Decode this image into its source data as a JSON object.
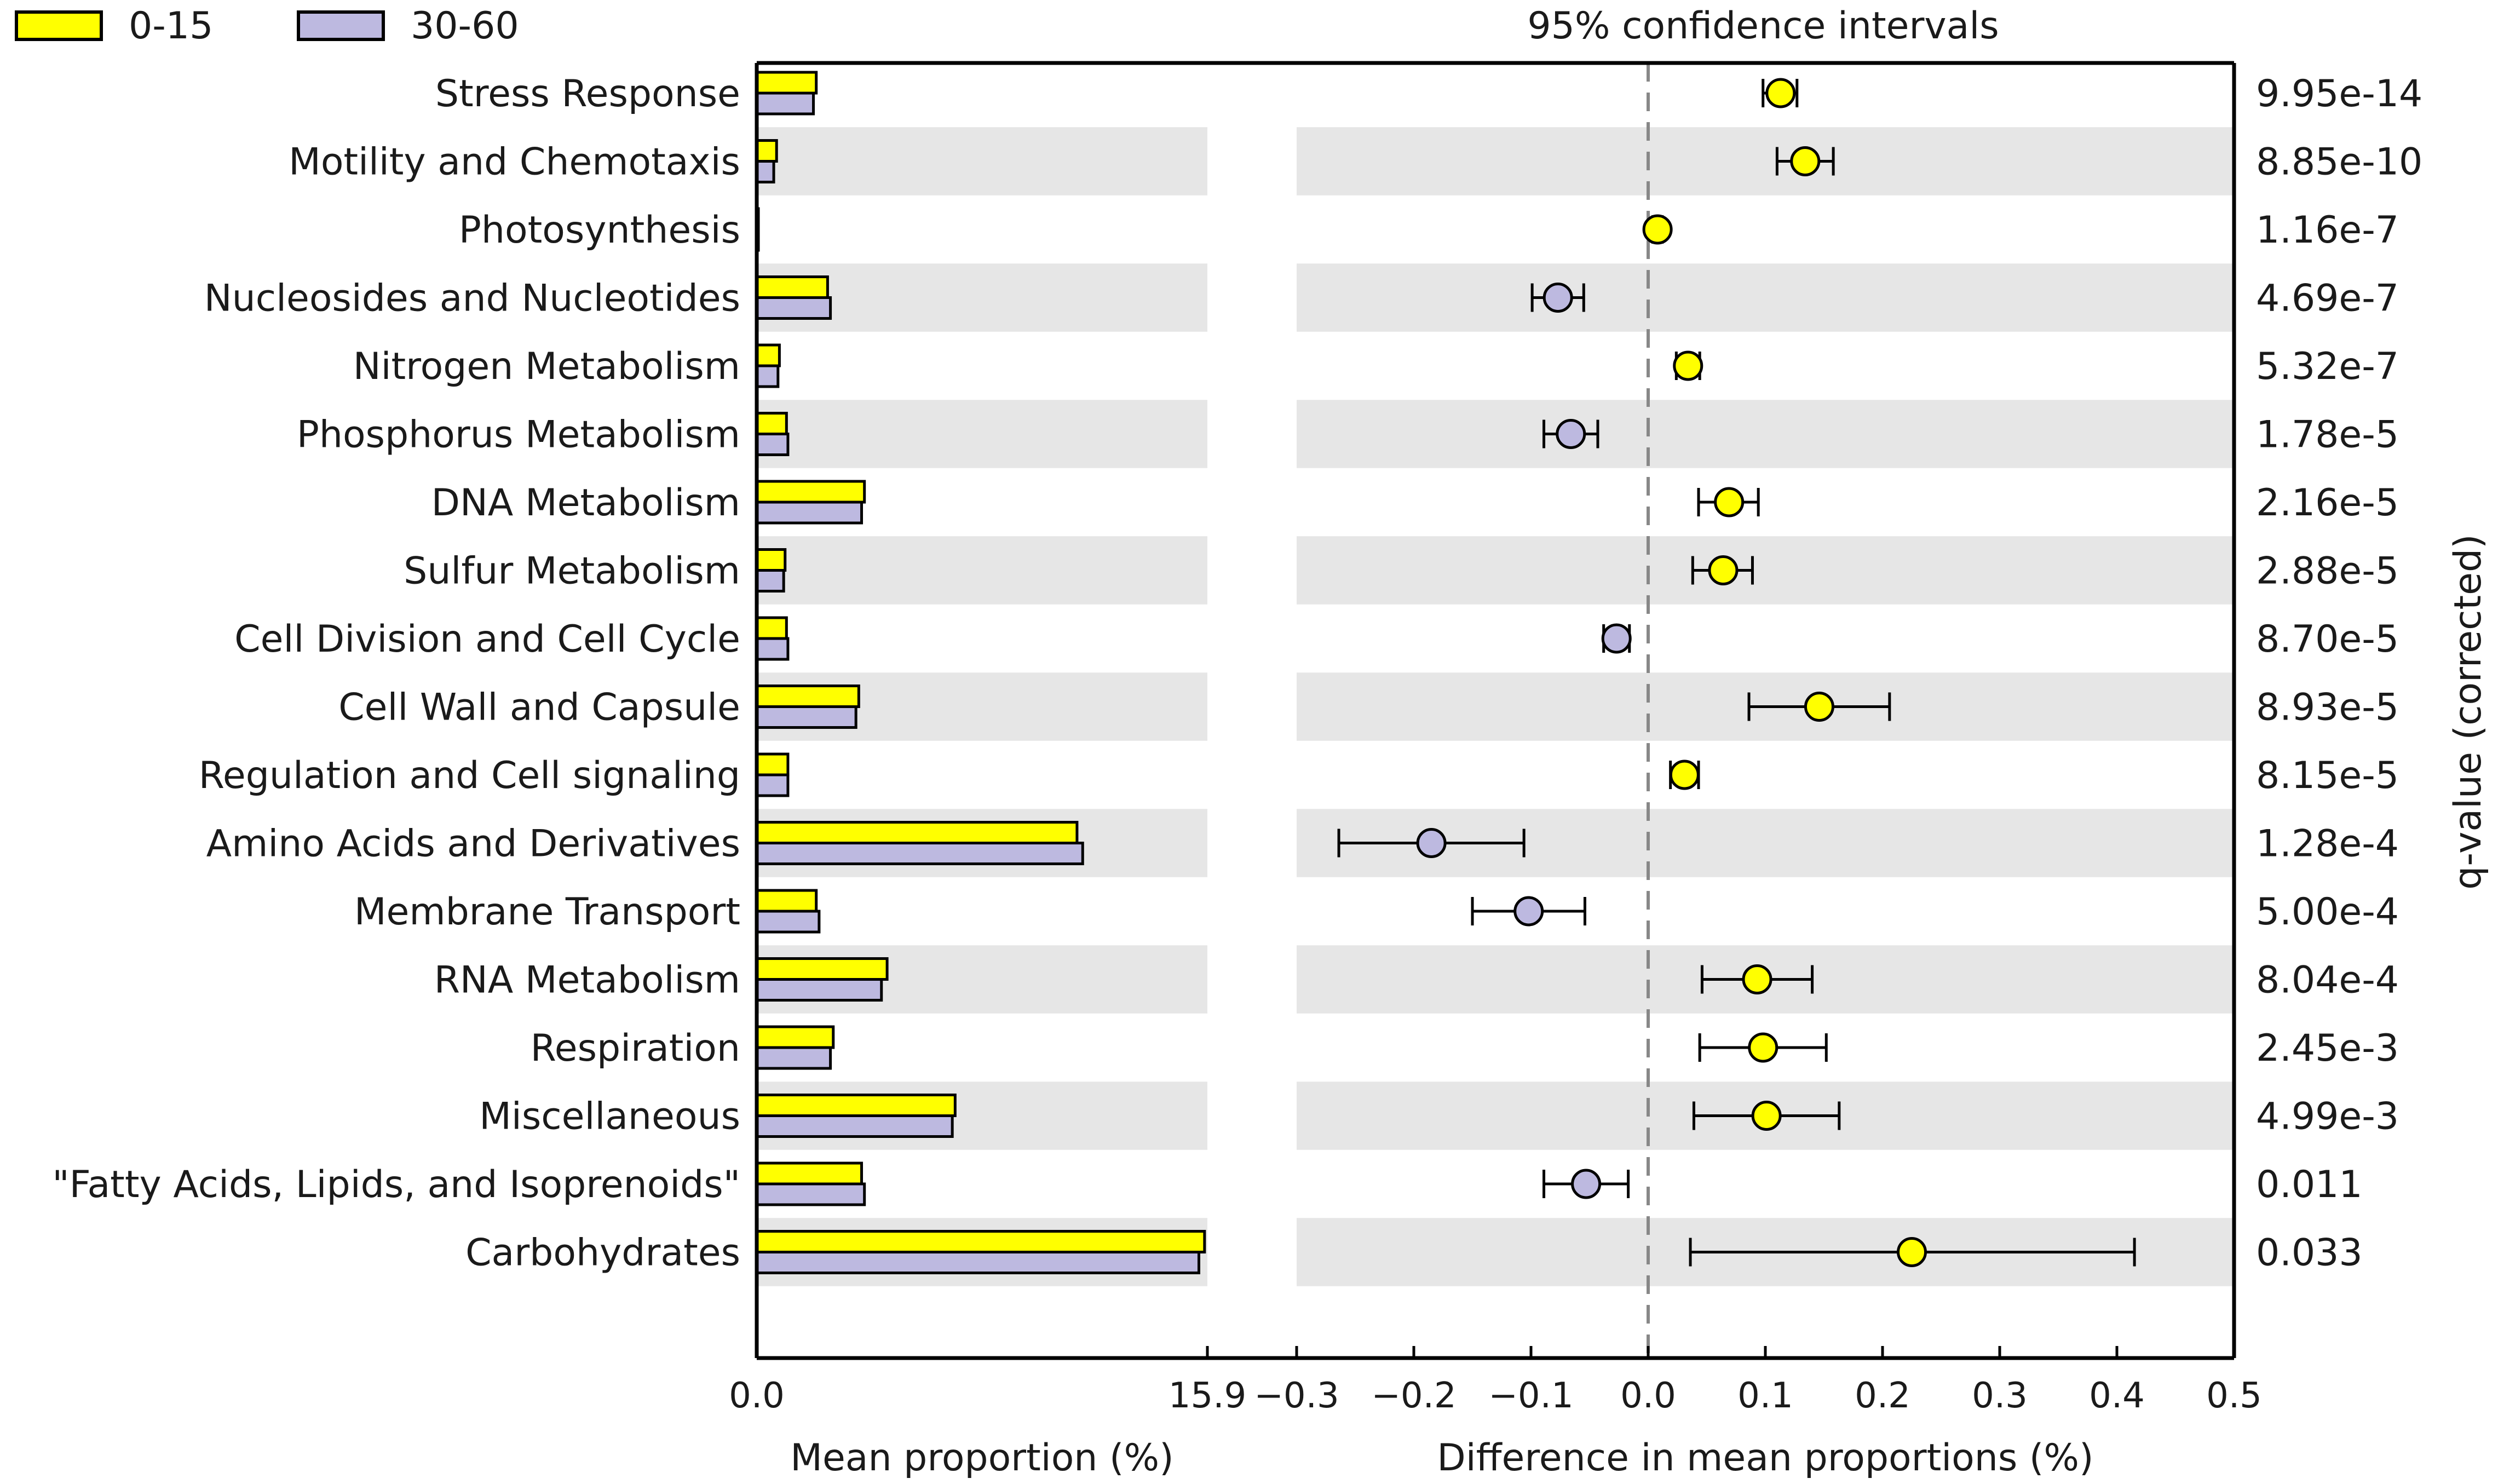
{
  "chart_data": {
    "type": "extended-error-bar",
    "legend": [
      {
        "label": "0-15",
        "color": "#ffff00"
      },
      {
        "label": "30-60",
        "color": "#bdb9e0"
      }
    ],
    "ci_title": "95% confidence intervals",
    "categories": [
      "Stress Response",
      "Motility and Chemotaxis",
      "Photosynthesis",
      "Nucleosides and Nucleotides",
      "Nitrogen Metabolism",
      "Phosphorus Metabolism",
      "DNA Metabolism",
      "Sulfur Metabolism",
      "Cell Division and Cell Cycle",
      "Cell Wall and Capsule",
      "Regulation and Cell signaling",
      "Amino Acids and Derivatives",
      "Membrane Transport",
      "RNA Metabolism",
      "Respiration",
      "Miscellaneous",
      "\"Fatty Acids, Lipids, and Isoprenoids\"",
      "Carbohydrates"
    ],
    "series": [
      {
        "name": "0-15",
        "values": [
          2.1,
          0.7,
          0.05,
          2.5,
          0.8,
          1.05,
          3.8,
          1.0,
          1.05,
          3.6,
          1.1,
          11.3,
          2.1,
          4.6,
          2.7,
          7.0,
          3.7,
          15.8
        ]
      },
      {
        "name": "30-60",
        "values": [
          2.0,
          0.6,
          0.03,
          2.6,
          0.75,
          1.1,
          3.7,
          0.95,
          1.1,
          3.5,
          1.1,
          11.5,
          2.2,
          4.4,
          2.6,
          6.9,
          3.8,
          15.6
        ]
      }
    ],
    "difference": [
      0.113,
      0.134,
      0.008,
      -0.077,
      0.034,
      -0.066,
      0.069,
      0.064,
      -0.027,
      0.146,
      0.031,
      -0.185,
      -0.102,
      0.093,
      0.098,
      0.101,
      -0.053,
      0.225
    ],
    "ci_low": [
      0.098,
      0.11,
      0.004,
      -0.099,
      0.024,
      -0.089,
      0.043,
      0.038,
      -0.038,
      0.086,
      0.019,
      -0.264,
      -0.15,
      0.046,
      0.044,
      0.039,
      -0.089,
      0.036
    ],
    "ci_high": [
      0.127,
      0.158,
      0.012,
      -0.055,
      0.044,
      -0.043,
      0.094,
      0.089,
      -0.016,
      0.206,
      0.043,
      -0.106,
      -0.054,
      0.14,
      0.152,
      0.163,
      -0.017,
      0.415
    ],
    "q_values": [
      "9.95e-14",
      "8.85e-10",
      "1.16e-7",
      "4.69e-7",
      "5.32e-7",
      "1.78e-5",
      "2.16e-5",
      "2.88e-5",
      "8.70e-5",
      "8.93e-5",
      "8.15e-5",
      "1.28e-4",
      "5.00e-4",
      "8.04e-4",
      "2.45e-3",
      "4.99e-3",
      "0.011",
      "0.033"
    ],
    "left_axis": {
      "label": "Mean proportion (%)",
      "xlim": [
        0.0,
        15.9
      ],
      "ticks": [
        "0.0",
        "15.9"
      ]
    },
    "right_axis": {
      "label": "Difference in mean proportions (%)",
      "xlim": [
        -0.3,
        0.5
      ],
      "ticks": [
        -0.3,
        -0.2,
        -0.1,
        0.0,
        0.1,
        0.2,
        0.3,
        0.4,
        0.5
      ]
    },
    "right_ylabel": "q-value (corrected)"
  }
}
